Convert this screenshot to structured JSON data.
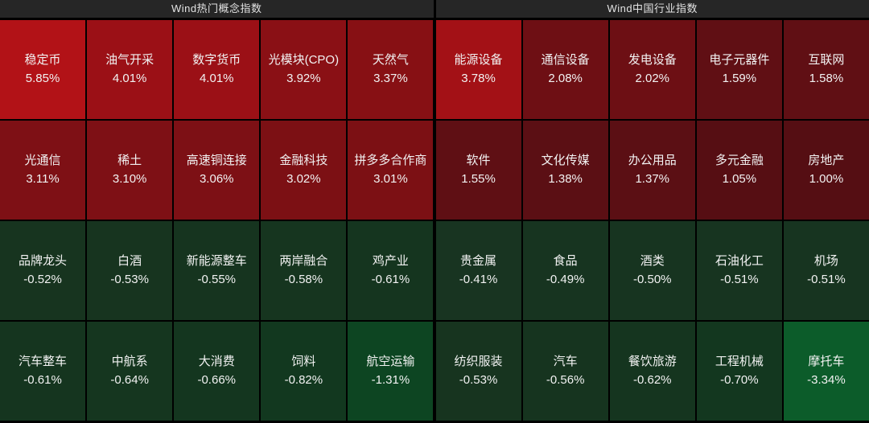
{
  "chart_data": [
    {
      "type": "heatmap",
      "title": "Wind热门概念指数",
      "columns": 5,
      "rows": 4,
      "cells": [
        {
          "name": "稳定币",
          "change": "5.85%",
          "value": 5.85,
          "color": "#b21217"
        },
        {
          "name": "油气开采",
          "change": "4.01%",
          "value": 4.01,
          "color": "#9b1016"
        },
        {
          "name": "数字货币",
          "change": "4.01%",
          "value": 4.01,
          "color": "#9b1016"
        },
        {
          "name": "光模块(CPO)",
          "change": "3.92%",
          "value": 3.92,
          "color": "#8a1015"
        },
        {
          "name": "天然气",
          "change": "3.37%",
          "value": 3.37,
          "color": "#871014"
        },
        {
          "name": "光通信",
          "change": "3.11%",
          "value": 3.11,
          "color": "#7e1015"
        },
        {
          "name": "稀土",
          "change": "3.10%",
          "value": 3.1,
          "color": "#7e1015"
        },
        {
          "name": "高速铜连接",
          "change": "3.06%",
          "value": 3.06,
          "color": "#7d1015"
        },
        {
          "name": "金融科技",
          "change": "3.02%",
          "value": 3.02,
          "color": "#7c1014"
        },
        {
          "name": "拼多多合作商",
          "change": "3.01%",
          "value": 3.01,
          "color": "#7c1014"
        },
        {
          "name": "品牌龙头",
          "change": "-0.52%",
          "value": -0.52,
          "color": "#17341f"
        },
        {
          "name": "白酒",
          "change": "-0.53%",
          "value": -0.53,
          "color": "#17341f"
        },
        {
          "name": "新能源整车",
          "change": "-0.55%",
          "value": -0.55,
          "color": "#16341f"
        },
        {
          "name": "两岸融合",
          "change": "-0.58%",
          "value": -0.58,
          "color": "#16351f"
        },
        {
          "name": "鸡产业",
          "change": "-0.61%",
          "value": -0.61,
          "color": "#15351f"
        },
        {
          "name": "汽车整车",
          "change": "-0.61%",
          "value": -0.61,
          "color": "#15351f"
        },
        {
          "name": "中航系",
          "change": "-0.64%",
          "value": -0.64,
          "color": "#15361f"
        },
        {
          "name": "大消费",
          "change": "-0.66%",
          "value": -0.66,
          "color": "#14361f"
        },
        {
          "name": "饲料",
          "change": "-0.82%",
          "value": -0.82,
          "color": "#12381f"
        },
        {
          "name": "航空运输",
          "change": "-1.31%",
          "value": -1.31,
          "color": "#0d4522"
        }
      ]
    },
    {
      "type": "heatmap",
      "title": "Wind中国行业指数",
      "columns": 5,
      "rows": 4,
      "cells": [
        {
          "name": "能源设备",
          "change": "3.78%",
          "value": 3.78,
          "color": "#a31116"
        },
        {
          "name": "通信设备",
          "change": "2.08%",
          "value": 2.08,
          "color": "#6e0f14"
        },
        {
          "name": "发电设备",
          "change": "2.02%",
          "value": 2.02,
          "color": "#6d0f14"
        },
        {
          "name": "电子元器件",
          "change": "1.59%",
          "value": 1.59,
          "color": "#600f14"
        },
        {
          "name": "互联网",
          "change": "1.58%",
          "value": 1.58,
          "color": "#600f14"
        },
        {
          "name": "软件",
          "change": "1.55%",
          "value": 1.55,
          "color": "#5f0f14"
        },
        {
          "name": "文化传媒",
          "change": "1.38%",
          "value": 1.38,
          "color": "#5b0f14"
        },
        {
          "name": "办公用品",
          "change": "1.37%",
          "value": 1.37,
          "color": "#5b0f14"
        },
        {
          "name": "多元金融",
          "change": "1.05%",
          "value": 1.05,
          "color": "#560e13"
        },
        {
          "name": "房地产",
          "change": "1.00%",
          "value": 1.0,
          "color": "#550e13"
        },
        {
          "name": "贵金属",
          "change": "-0.41%",
          "value": -0.41,
          "color": "#183421"
        },
        {
          "name": "食品",
          "change": "-0.49%",
          "value": -0.49,
          "color": "#173420"
        },
        {
          "name": "酒类",
          "change": "-0.50%",
          "value": -0.5,
          "color": "#173420"
        },
        {
          "name": "石油化工",
          "change": "-0.51%",
          "value": -0.51,
          "color": "#173420"
        },
        {
          "name": "机场",
          "change": "-0.51%",
          "value": -0.51,
          "color": "#173420"
        },
        {
          "name": "纺织服装",
          "change": "-0.53%",
          "value": -0.53,
          "color": "#17341f"
        },
        {
          "name": "汽车",
          "change": "-0.56%",
          "value": -0.56,
          "color": "#16341f"
        },
        {
          "name": "餐饮旅游",
          "change": "-0.62%",
          "value": -0.62,
          "color": "#15351f"
        },
        {
          "name": "工程机械",
          "change": "-0.70%",
          "value": -0.7,
          "color": "#13371f"
        },
        {
          "name": "摩托车",
          "change": "-3.34%",
          "value": -3.34,
          "color": "#0c5c2a"
        }
      ]
    }
  ],
  "colors": {
    "background": "#000000",
    "header_bg": "#262626",
    "header_text": "#e3e3e3",
    "cell_text": "#f2f2f2",
    "gain_max": "#b21217",
    "gain_min": "#550e13",
    "loss_min": "#183421",
    "loss_max": "#0c5c2a"
  }
}
